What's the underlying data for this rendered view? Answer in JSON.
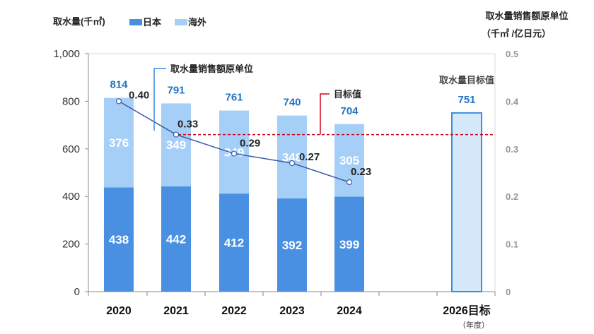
{
  "chart_data": {
    "type": "bar",
    "categories": [
      "2020",
      "2021",
      "2022",
      "2023",
      "2024"
    ],
    "target_category": "2026目标",
    "xunit": "（年度）",
    "ylabel": "取水量(千㎡)",
    "y2label": [
      "取水量销售额原单位",
      "（千㎡ /亿日元）"
    ],
    "ylim": [
      0,
      1000
    ],
    "y2lim": [
      0,
      0.5
    ],
    "yticks": [
      "0",
      "200",
      "400",
      "600",
      "800",
      "1,000"
    ],
    "y2ticks": [
      "0",
      "0.1",
      "0.2",
      "0.3",
      "0.4",
      "0.5"
    ],
    "series": [
      {
        "name": "日本",
        "color": "#4a90e2",
        "values": [
          438,
          442,
          412,
          392,
          399
        ]
      },
      {
        "name": "海外",
        "color": "#a6cff7",
        "values": [
          376,
          349,
          349,
          348,
          305
        ]
      }
    ],
    "totals": [
      814,
      791,
      761,
      740,
      704
    ],
    "target": {
      "label": "取水量目标值",
      "value": 751,
      "fill": "#d6e9fb",
      "stroke": "#3a8ee0"
    },
    "intensity": {
      "name": "取水量销售额原单位",
      "values": [
        0.4,
        0.33,
        0.29,
        0.27,
        0.23
      ],
      "labels": [
        "0.40",
        "0.33",
        "0.29",
        "0.27",
        "0.23"
      ],
      "color": "#3b5ba5"
    },
    "target_line": {
      "label": "目标值",
      "value": 0.33,
      "color": "#d0021b"
    },
    "legend_placement": "top-left",
    "grid": false
  }
}
